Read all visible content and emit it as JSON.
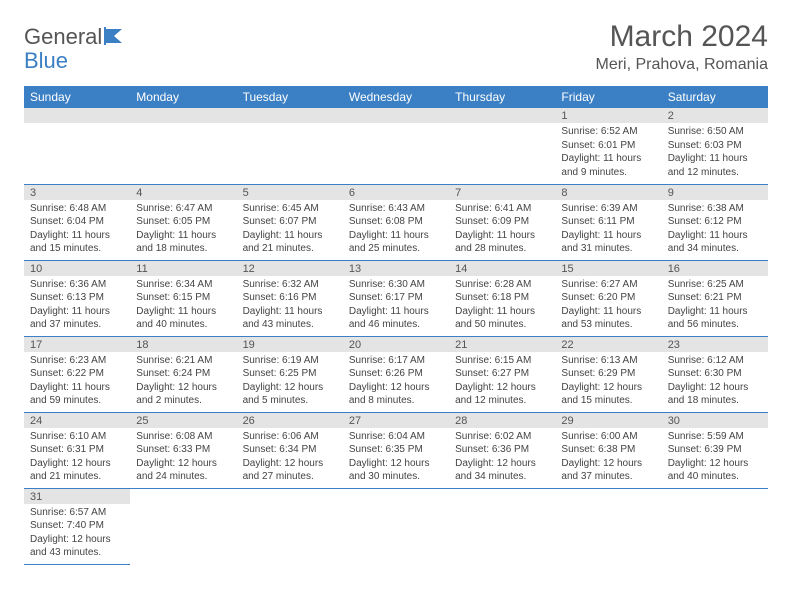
{
  "logo": {
    "part1": "General",
    "part2": "Blue"
  },
  "title": "March 2024",
  "location": "Meri, Prahova, Romania",
  "colors": {
    "header_bg": "#3b7fc4",
    "daynum_bg": "#e4e4e4",
    "text": "#555555",
    "border": "#3b7fc4"
  },
  "day_headers": [
    "Sunday",
    "Monday",
    "Tuesday",
    "Wednesday",
    "Thursday",
    "Friday",
    "Saturday"
  ],
  "weeks": [
    [
      null,
      null,
      null,
      null,
      null,
      {
        "n": "1",
        "sr": "Sunrise: 6:52 AM",
        "ss": "Sunset: 6:01 PM",
        "d1": "Daylight: 11 hours",
        "d2": "and 9 minutes."
      },
      {
        "n": "2",
        "sr": "Sunrise: 6:50 AM",
        "ss": "Sunset: 6:03 PM",
        "d1": "Daylight: 11 hours",
        "d2": "and 12 minutes."
      }
    ],
    [
      {
        "n": "3",
        "sr": "Sunrise: 6:48 AM",
        "ss": "Sunset: 6:04 PM",
        "d1": "Daylight: 11 hours",
        "d2": "and 15 minutes."
      },
      {
        "n": "4",
        "sr": "Sunrise: 6:47 AM",
        "ss": "Sunset: 6:05 PM",
        "d1": "Daylight: 11 hours",
        "d2": "and 18 minutes."
      },
      {
        "n": "5",
        "sr": "Sunrise: 6:45 AM",
        "ss": "Sunset: 6:07 PM",
        "d1": "Daylight: 11 hours",
        "d2": "and 21 minutes."
      },
      {
        "n": "6",
        "sr": "Sunrise: 6:43 AM",
        "ss": "Sunset: 6:08 PM",
        "d1": "Daylight: 11 hours",
        "d2": "and 25 minutes."
      },
      {
        "n": "7",
        "sr": "Sunrise: 6:41 AM",
        "ss": "Sunset: 6:09 PM",
        "d1": "Daylight: 11 hours",
        "d2": "and 28 minutes."
      },
      {
        "n": "8",
        "sr": "Sunrise: 6:39 AM",
        "ss": "Sunset: 6:11 PM",
        "d1": "Daylight: 11 hours",
        "d2": "and 31 minutes."
      },
      {
        "n": "9",
        "sr": "Sunrise: 6:38 AM",
        "ss": "Sunset: 6:12 PM",
        "d1": "Daylight: 11 hours",
        "d2": "and 34 minutes."
      }
    ],
    [
      {
        "n": "10",
        "sr": "Sunrise: 6:36 AM",
        "ss": "Sunset: 6:13 PM",
        "d1": "Daylight: 11 hours",
        "d2": "and 37 minutes."
      },
      {
        "n": "11",
        "sr": "Sunrise: 6:34 AM",
        "ss": "Sunset: 6:15 PM",
        "d1": "Daylight: 11 hours",
        "d2": "and 40 minutes."
      },
      {
        "n": "12",
        "sr": "Sunrise: 6:32 AM",
        "ss": "Sunset: 6:16 PM",
        "d1": "Daylight: 11 hours",
        "d2": "and 43 minutes."
      },
      {
        "n": "13",
        "sr": "Sunrise: 6:30 AM",
        "ss": "Sunset: 6:17 PM",
        "d1": "Daylight: 11 hours",
        "d2": "and 46 minutes."
      },
      {
        "n": "14",
        "sr": "Sunrise: 6:28 AM",
        "ss": "Sunset: 6:18 PM",
        "d1": "Daylight: 11 hours",
        "d2": "and 50 minutes."
      },
      {
        "n": "15",
        "sr": "Sunrise: 6:27 AM",
        "ss": "Sunset: 6:20 PM",
        "d1": "Daylight: 11 hours",
        "d2": "and 53 minutes."
      },
      {
        "n": "16",
        "sr": "Sunrise: 6:25 AM",
        "ss": "Sunset: 6:21 PM",
        "d1": "Daylight: 11 hours",
        "d2": "and 56 minutes."
      }
    ],
    [
      {
        "n": "17",
        "sr": "Sunrise: 6:23 AM",
        "ss": "Sunset: 6:22 PM",
        "d1": "Daylight: 11 hours",
        "d2": "and 59 minutes."
      },
      {
        "n": "18",
        "sr": "Sunrise: 6:21 AM",
        "ss": "Sunset: 6:24 PM",
        "d1": "Daylight: 12 hours",
        "d2": "and 2 minutes."
      },
      {
        "n": "19",
        "sr": "Sunrise: 6:19 AM",
        "ss": "Sunset: 6:25 PM",
        "d1": "Daylight: 12 hours",
        "d2": "and 5 minutes."
      },
      {
        "n": "20",
        "sr": "Sunrise: 6:17 AM",
        "ss": "Sunset: 6:26 PM",
        "d1": "Daylight: 12 hours",
        "d2": "and 8 minutes."
      },
      {
        "n": "21",
        "sr": "Sunrise: 6:15 AM",
        "ss": "Sunset: 6:27 PM",
        "d1": "Daylight: 12 hours",
        "d2": "and 12 minutes."
      },
      {
        "n": "22",
        "sr": "Sunrise: 6:13 AM",
        "ss": "Sunset: 6:29 PM",
        "d1": "Daylight: 12 hours",
        "d2": "and 15 minutes."
      },
      {
        "n": "23",
        "sr": "Sunrise: 6:12 AM",
        "ss": "Sunset: 6:30 PM",
        "d1": "Daylight: 12 hours",
        "d2": "and 18 minutes."
      }
    ],
    [
      {
        "n": "24",
        "sr": "Sunrise: 6:10 AM",
        "ss": "Sunset: 6:31 PM",
        "d1": "Daylight: 12 hours",
        "d2": "and 21 minutes."
      },
      {
        "n": "25",
        "sr": "Sunrise: 6:08 AM",
        "ss": "Sunset: 6:33 PM",
        "d1": "Daylight: 12 hours",
        "d2": "and 24 minutes."
      },
      {
        "n": "26",
        "sr": "Sunrise: 6:06 AM",
        "ss": "Sunset: 6:34 PM",
        "d1": "Daylight: 12 hours",
        "d2": "and 27 minutes."
      },
      {
        "n": "27",
        "sr": "Sunrise: 6:04 AM",
        "ss": "Sunset: 6:35 PM",
        "d1": "Daylight: 12 hours",
        "d2": "and 30 minutes."
      },
      {
        "n": "28",
        "sr": "Sunrise: 6:02 AM",
        "ss": "Sunset: 6:36 PM",
        "d1": "Daylight: 12 hours",
        "d2": "and 34 minutes."
      },
      {
        "n": "29",
        "sr": "Sunrise: 6:00 AM",
        "ss": "Sunset: 6:38 PM",
        "d1": "Daylight: 12 hours",
        "d2": "and 37 minutes."
      },
      {
        "n": "30",
        "sr": "Sunrise: 5:59 AM",
        "ss": "Sunset: 6:39 PM",
        "d1": "Daylight: 12 hours",
        "d2": "and 40 minutes."
      }
    ],
    [
      {
        "n": "31",
        "sr": "Sunrise: 6:57 AM",
        "ss": "Sunset: 7:40 PM",
        "d1": "Daylight: 12 hours",
        "d2": "and 43 minutes."
      },
      null,
      null,
      null,
      null,
      null,
      null
    ]
  ]
}
